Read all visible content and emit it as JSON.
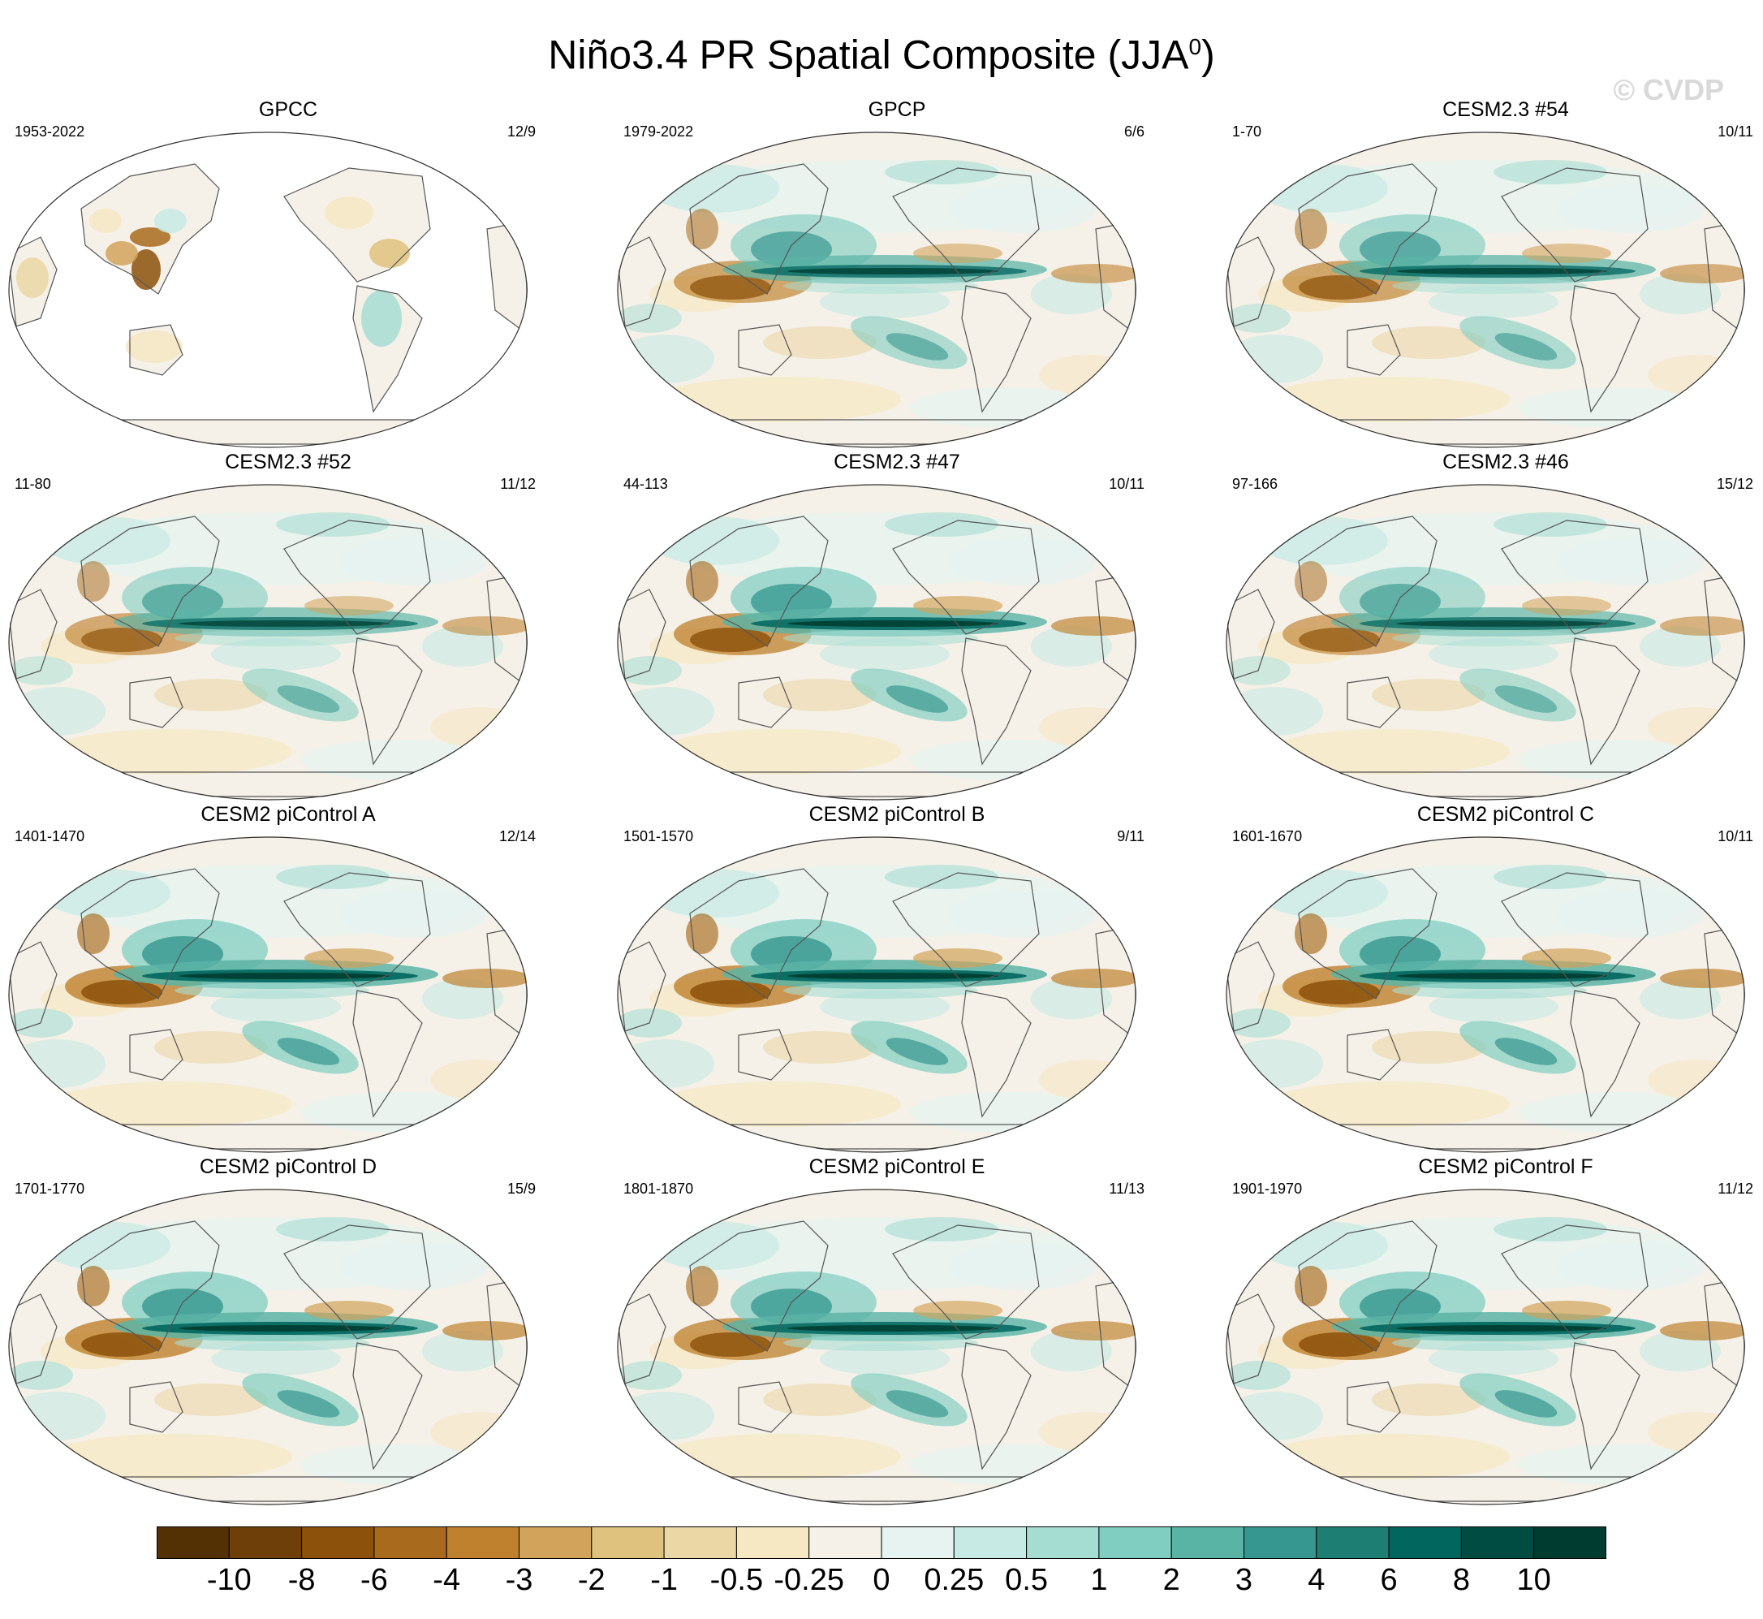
{
  "title": "Niño3.4 PR Spatial Composite (JJA",
  "title_sup": "0",
  "title_close": ")",
  "watermark": "© CVDP",
  "panels": [
    {
      "name": "GPCC",
      "years": "1953-2022",
      "count": "12/9",
      "land_only": true,
      "strength": 0.6
    },
    {
      "name": "GPCP",
      "years": "1979-2022",
      "count": "6/6",
      "land_only": false,
      "strength": 0.85
    },
    {
      "name": "CESM2.3 #54",
      "years": "1-70",
      "count": "10/11",
      "land_only": false,
      "strength": 0.85
    },
    {
      "name": "CESM2.3 #52",
      "years": "11-80",
      "count": "11/12",
      "land_only": false,
      "strength": 0.8
    },
    {
      "name": "CESM2.3 #47",
      "years": "44-113",
      "count": "10/11",
      "land_only": false,
      "strength": 0.95
    },
    {
      "name": "CESM2.3 #46",
      "years": "97-166",
      "count": "15/12",
      "land_only": false,
      "strength": 0.8
    },
    {
      "name": "CESM2 piControl A",
      "years": "1401-1470",
      "count": "12/14",
      "land_only": false,
      "strength": 1.0
    },
    {
      "name": "CESM2 piControl B",
      "years": "1501-1570",
      "count": "9/11",
      "land_only": false,
      "strength": 1.0
    },
    {
      "name": "CESM2 piControl C",
      "years": "1601-1670",
      "count": "10/11",
      "land_only": false,
      "strength": 1.0
    },
    {
      "name": "CESM2 piControl D",
      "years": "1701-1770",
      "count": "15/9",
      "land_only": false,
      "strength": 1.0
    },
    {
      "name": "CESM2 piControl E",
      "years": "1801-1870",
      "count": "11/13",
      "land_only": false,
      "strength": 0.95
    },
    {
      "name": "CESM2 piControl F",
      "years": "1901-1970",
      "count": "11/12",
      "land_only": false,
      "strength": 1.0
    }
  ],
  "colorbar": {
    "labels": [
      "-10",
      "-8",
      "-6",
      "-4",
      "-3",
      "-2",
      "-1",
      "-0.5",
      "-0.25",
      "0",
      "0.25",
      "0.5",
      "1",
      "2",
      "3",
      "4",
      "6",
      "8",
      "10"
    ],
    "colors": [
      "#543005",
      "#6f3f09",
      "#8c510a",
      "#a86a1c",
      "#bf812d",
      "#d2a35a",
      "#dfc27d",
      "#ebd7a6",
      "#f6e8c3",
      "#f5f1e8",
      "#e6f3f0",
      "#c7eae5",
      "#a6ddd3",
      "#80cdc1",
      "#5ab4a6",
      "#35978f",
      "#1d7e73",
      "#01665e",
      "#004c42",
      "#003c30"
    ]
  }
}
